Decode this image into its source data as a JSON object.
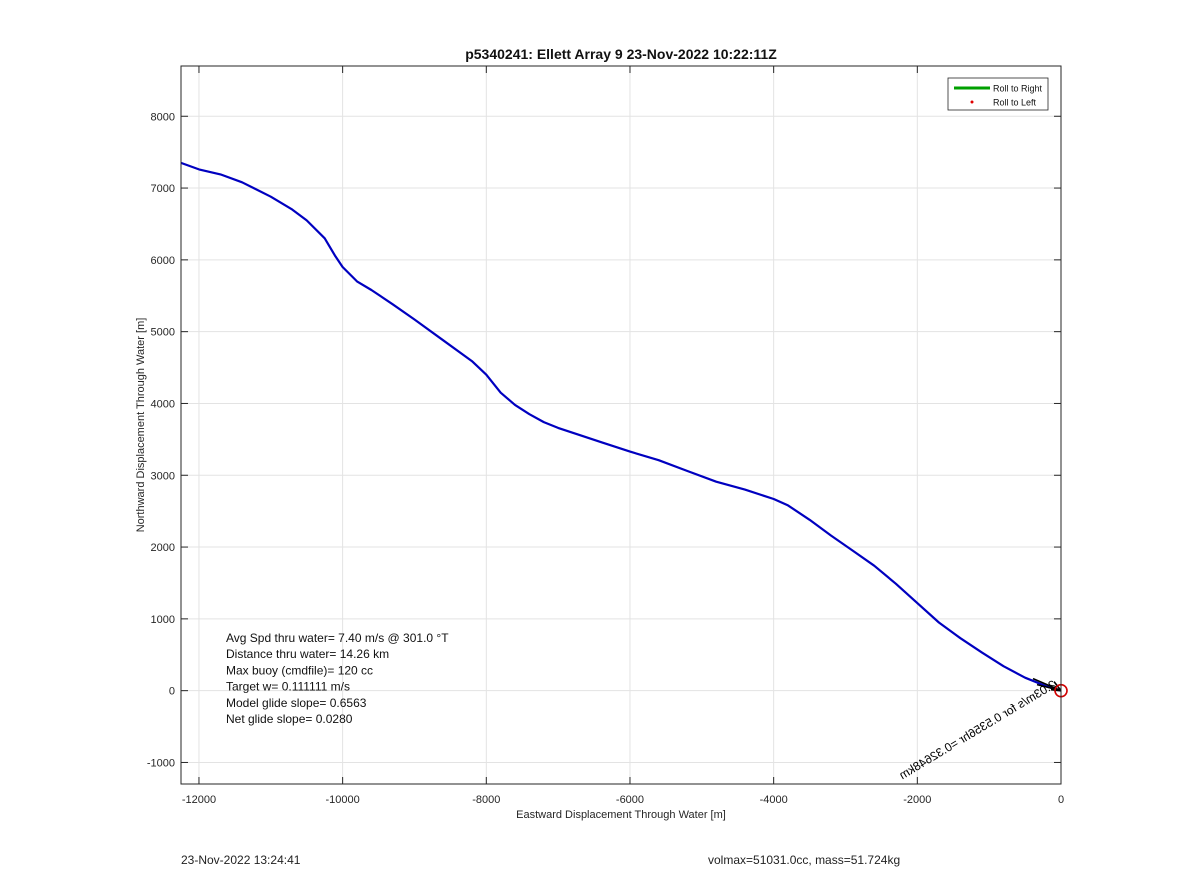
{
  "chart_data": {
    "type": "line",
    "title": "p5340241: Ellett Array 9 23-Nov-2022 10:22:11Z",
    "xlabel": "Eastward Displacement Through Water [m]",
    "ylabel": "Northward Displacement Through Water [m]",
    "xlim": [
      -12250,
      0
    ],
    "ylim": [
      -1300,
      8700
    ],
    "xticks": [
      -12000,
      -10000,
      -8000,
      -6000,
      -4000,
      -2000,
      0
    ],
    "yticks": [
      -1000,
      0,
      1000,
      2000,
      3000,
      4000,
      5000,
      6000,
      7000,
      8000
    ],
    "grid": true,
    "legend_position": "top-right",
    "legend": [
      {
        "label": "Roll to Right",
        "color": "#00a000",
        "style": "line"
      },
      {
        "label": "Roll to Left",
        "color": "#e00000",
        "style": "dot"
      }
    ],
    "series": [
      {
        "color": "#0000c0",
        "x": [
          -12250,
          -12000,
          -11700,
          -11400,
          -11000,
          -10700,
          -10500,
          -10250,
          -10100,
          -10000,
          -9800,
          -9600,
          -9300,
          -9000,
          -8600,
          -8200,
          -8000,
          -7800,
          -7600,
          -7400,
          -7200,
          -7000,
          -6700,
          -6400,
          -6000,
          -5600,
          -5200,
          -4800,
          -4400,
          -4000,
          -3800,
          -3500,
          -3200,
          -2900,
          -2600,
          -2300,
          -2000,
          -1700,
          -1400,
          -1100,
          -800,
          -500,
          -200,
          0
        ],
        "y": [
          7350,
          7260,
          7190,
          7080,
          6880,
          6700,
          6550,
          6300,
          6050,
          5900,
          5700,
          5580,
          5380,
          5170,
          4880,
          4590,
          4400,
          4150,
          3980,
          3850,
          3740,
          3660,
          3560,
          3460,
          3330,
          3210,
          3060,
          2910,
          2800,
          2670,
          2580,
          2380,
          2160,
          1950,
          1740,
          1490,
          1220,
          950,
          730,
          530,
          340,
          180,
          60,
          0
        ]
      }
    ],
    "annotations": {
      "arrow_text": "2.03m/s for 0.5356hr =0.32648km",
      "arrow_color": "#000000",
      "end_marker_color": "#d00000",
      "stats": [
        "Avg Spd thru water=  7.40 m/s @ 301.0 °T",
        "Distance thru water= 14.26 km",
        "Max buoy (cmdfile)= 120 cc",
        "Target w= 0.111111 m/s",
        "Model glide slope= 0.6563",
        "Net glide slope= 0.0280"
      ]
    }
  },
  "footer": {
    "timestamp": "23-Nov-2022 13:24:41",
    "mass_info": "volmax=51031.0cc, mass=51.724kg"
  }
}
